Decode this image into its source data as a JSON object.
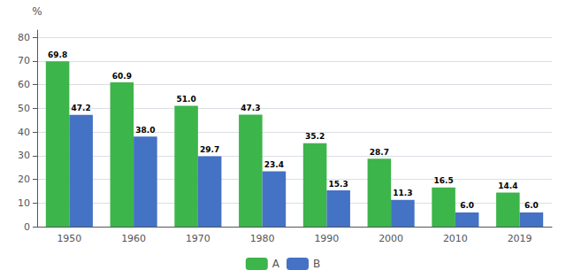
{
  "chart_data": {
    "type": "bar",
    "ylabel": "%",
    "categories": [
      "1950",
      "1960",
      "1970",
      "1980",
      "1990",
      "2000",
      "2010",
      "2019"
    ],
    "series": [
      {
        "name": "A",
        "color": "#3cb54a",
        "values": [
          69.8,
          60.9,
          51.0,
          47.3,
          35.2,
          28.7,
          16.5,
          14.4
        ],
        "value_labels": [
          "69.8",
          "60.9",
          "51.0",
          "47.3",
          "35.2",
          "28.7",
          "16.5",
          "14.4"
        ]
      },
      {
        "name": "B",
        "color": "#4472c4",
        "values": [
          47.2,
          38.0,
          29.7,
          23.4,
          15.3,
          11.3,
          6.0,
          6.0
        ],
        "value_labels": [
          "47.2",
          "38.0",
          "29.7",
          "23.4",
          "15.3",
          "11.3",
          "6.0",
          "6.0"
        ]
      }
    ],
    "ylim": [
      0,
      83
    ],
    "yticks": [
      0,
      10,
      20,
      30,
      40,
      50,
      60,
      70,
      80
    ],
    "grid": true,
    "legend": "bottom",
    "data_labels": true
  }
}
